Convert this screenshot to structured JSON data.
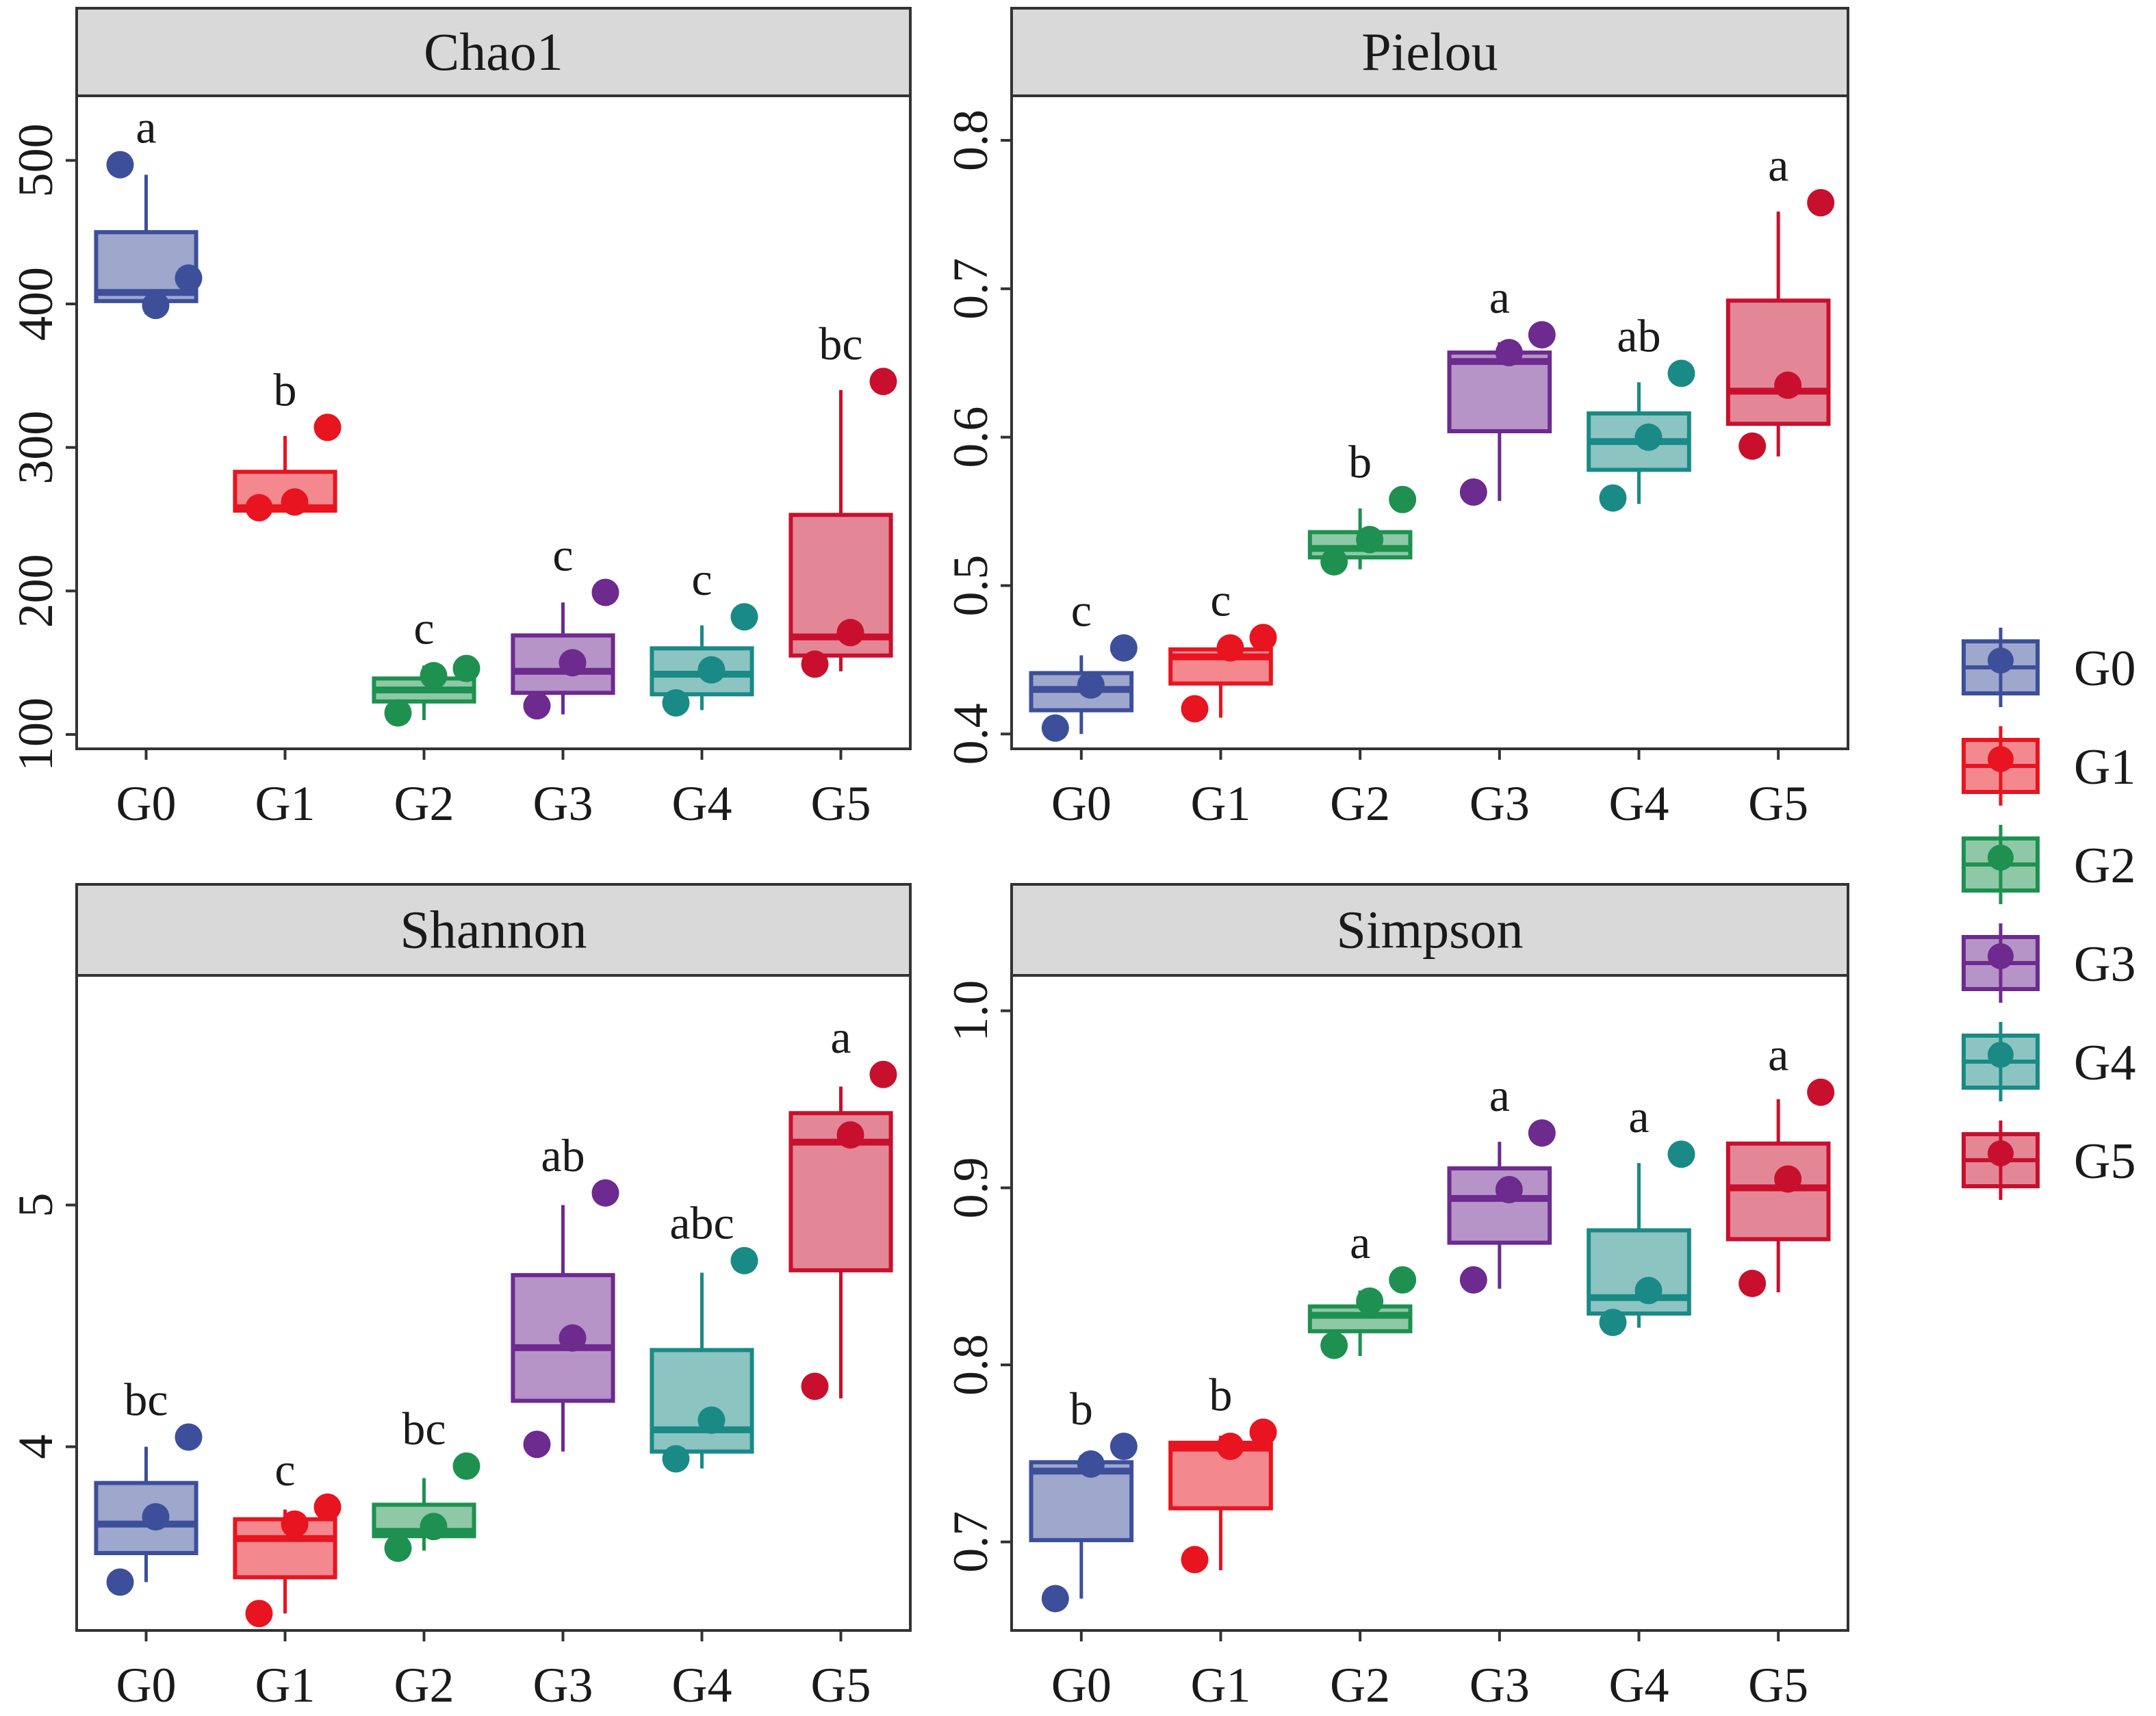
{
  "chart_data": {
    "type": "boxplot",
    "groups": [
      "G0",
      "G1",
      "G2",
      "G3",
      "G4",
      "G5"
    ],
    "colors": {
      "G0": "#3d4f9a",
      "G1": "#e8141f",
      "G2": "#1e9150",
      "G3": "#6d2a8f",
      "G4": "#1a8a86",
      "G5": "#c8102e"
    },
    "legend": {
      "position": "right",
      "entries": [
        "G0",
        "G1",
        "G2",
        "G3",
        "G4",
        "G5"
      ]
    },
    "panels": [
      {
        "title": "Chao1",
        "ylim": [
          90,
          545
        ],
        "yticks": [
          100,
          200,
          300,
          400,
          500
        ],
        "ytick_labels": [
          "100",
          "200",
          "300",
          "400",
          "500"
        ],
        "boxes": [
          {
            "group": "G0",
            "whisker_low": 393,
            "q1": 402,
            "median": 408,
            "q3": 450,
            "whisker_high": 490,
            "points": [
              497,
              399,
              418
            ],
            "sig": "a"
          },
          {
            "group": "G1",
            "whisker_low": 256,
            "q1": 256,
            "median": 258,
            "q3": 283,
            "whisker_high": 308,
            "points": [
              258,
              262,
              314
            ],
            "sig": "b"
          },
          {
            "group": "G2",
            "whisker_low": 110,
            "q1": 123,
            "median": 131,
            "q3": 139,
            "whisker_high": 148,
            "points": [
              115,
              141,
              146
            ],
            "sig": "c"
          },
          {
            "group": "G3",
            "whisker_low": 114,
            "q1": 129,
            "median": 144,
            "q3": 169,
            "whisker_high": 192,
            "points": [
              120,
              150,
              199
            ],
            "sig": "c"
          },
          {
            "group": "G4",
            "whisker_low": 117,
            "q1": 128,
            "median": 142,
            "q3": 160,
            "whisker_high": 176,
            "points": [
              122,
              145,
              182
            ],
            "sig": "c"
          },
          {
            "group": "G5",
            "whisker_low": 144,
            "q1": 155,
            "median": 168,
            "q3": 253,
            "whisker_high": 340,
            "points": [
              149,
              171,
              346
            ],
            "sig": "bc"
          }
        ]
      },
      {
        "title": "Pielou",
        "ylim": [
          0.39,
          0.83
        ],
        "yticks": [
          0.4,
          0.5,
          0.6,
          0.7,
          0.8
        ],
        "ytick_labels": [
          "0.4",
          "0.5",
          "0.6",
          "0.7",
          "0.8"
        ],
        "boxes": [
          {
            "group": "G0",
            "whisker_low": 0.4,
            "q1": 0.416,
            "median": 0.43,
            "q3": 0.441,
            "whisker_high": 0.453,
            "points": [
              0.404,
              0.433,
              0.458
            ],
            "sig": "c"
          },
          {
            "group": "G1",
            "whisker_low": 0.411,
            "q1": 0.434,
            "median": 0.452,
            "q3": 0.457,
            "whisker_high": 0.463,
            "points": [
              0.417,
              0.458,
              0.465
            ],
            "sig": "c"
          },
          {
            "group": "G2",
            "whisker_low": 0.511,
            "q1": 0.519,
            "median": 0.525,
            "q3": 0.536,
            "whisker_high": 0.552,
            "points": [
              0.516,
              0.531,
              0.558
            ],
            "sig": "b"
          },
          {
            "group": "G3",
            "whisker_low": 0.557,
            "q1": 0.604,
            "median": 0.651,
            "q3": 0.657,
            "whisker_high": 0.664,
            "points": [
              0.563,
              0.657,
              0.669
            ],
            "sig": "a"
          },
          {
            "group": "G4",
            "whisker_low": 0.555,
            "q1": 0.578,
            "median": 0.597,
            "q3": 0.616,
            "whisker_high": 0.637,
            "points": [
              0.559,
              0.6,
              0.643
            ],
            "sig": "ab"
          },
          {
            "group": "G5",
            "whisker_low": 0.587,
            "q1": 0.609,
            "median": 0.631,
            "q3": 0.692,
            "whisker_high": 0.752,
            "points": [
              0.594,
              0.635,
              0.758
            ],
            "sig": "a"
          }
        ]
      },
      {
        "title": "Shannon",
        "ylim": [
          3.24,
          5.95
        ],
        "yticks": [
          4,
          5
        ],
        "ytick_labels": [
          "4",
          "5"
        ],
        "boxes": [
          {
            "group": "G0",
            "whisker_low": 3.44,
            "q1": 3.56,
            "median": 3.68,
            "q3": 3.85,
            "whisker_high": 4.0,
            "points": [
              3.44,
              3.71,
              4.04
            ],
            "sig": "bc"
          },
          {
            "group": "G1",
            "whisker_low": 3.31,
            "q1": 3.46,
            "median": 3.62,
            "q3": 3.7,
            "whisker_high": 3.74,
            "points": [
              3.31,
              3.68,
              3.75
            ],
            "sig": "c"
          },
          {
            "group": "G2",
            "whisker_low": 3.57,
            "q1": 3.63,
            "median": 3.65,
            "q3": 3.76,
            "whisker_high": 3.87,
            "points": [
              3.58,
              3.67,
              3.92
            ],
            "sig": "bc"
          },
          {
            "group": "G3",
            "whisker_low": 3.98,
            "q1": 4.19,
            "median": 4.41,
            "q3": 4.71,
            "whisker_high": 5.0,
            "points": [
              4.01,
              4.45,
              5.05
            ],
            "sig": "ab"
          },
          {
            "group": "G4",
            "whisker_low": 3.91,
            "q1": 3.98,
            "median": 4.07,
            "q3": 4.4,
            "whisker_high": 4.72,
            "points": [
              3.95,
              4.11,
              4.77
            ],
            "sig": "abc"
          },
          {
            "group": "G5",
            "whisker_low": 4.2,
            "q1": 4.73,
            "median": 5.26,
            "q3": 5.38,
            "whisker_high": 5.49,
            "points": [
              4.25,
              5.29,
              5.54
            ],
            "sig": "a"
          }
        ]
      },
      {
        "title": "Simpson",
        "ylim": [
          0.65,
          1.02
        ],
        "yticks": [
          0.7,
          0.8,
          0.9,
          1.0
        ],
        "ytick_labels": [
          "0.7",
          "0.8",
          "0.9",
          "1.0"
        ],
        "boxes": [
          {
            "group": "G0",
            "whisker_low": 0.668,
            "q1": 0.701,
            "median": 0.74,
            "q3": 0.745,
            "whisker_high": 0.749,
            "points": [
              0.668,
              0.744,
              0.754
            ],
            "sig": "b"
          },
          {
            "group": "G1",
            "whisker_low": 0.684,
            "q1": 0.719,
            "median": 0.753,
            "q3": 0.756,
            "whisker_high": 0.76,
            "points": [
              0.69,
              0.754,
              0.762
            ],
            "sig": "b"
          },
          {
            "group": "G2",
            "whisker_low": 0.805,
            "q1": 0.819,
            "median": 0.828,
            "q3": 0.833,
            "whisker_high": 0.842,
            "points": [
              0.811,
              0.836,
              0.848
            ],
            "sig": "a"
          },
          {
            "group": "G3",
            "whisker_low": 0.843,
            "q1": 0.869,
            "median": 0.894,
            "q3": 0.911,
            "whisker_high": 0.926,
            "points": [
              0.848,
              0.899,
              0.931
            ],
            "sig": "a"
          },
          {
            "group": "G4",
            "whisker_low": 0.821,
            "q1": 0.829,
            "median": 0.838,
            "q3": 0.876,
            "whisker_high": 0.914,
            "points": [
              0.824,
              0.842,
              0.919
            ],
            "sig": "a"
          },
          {
            "group": "G5",
            "whisker_low": 0.841,
            "q1": 0.871,
            "median": 0.9,
            "q3": 0.925,
            "whisker_high": 0.95,
            "points": [
              0.846,
              0.905,
              0.954
            ],
            "sig": "a"
          }
        ]
      }
    ]
  }
}
